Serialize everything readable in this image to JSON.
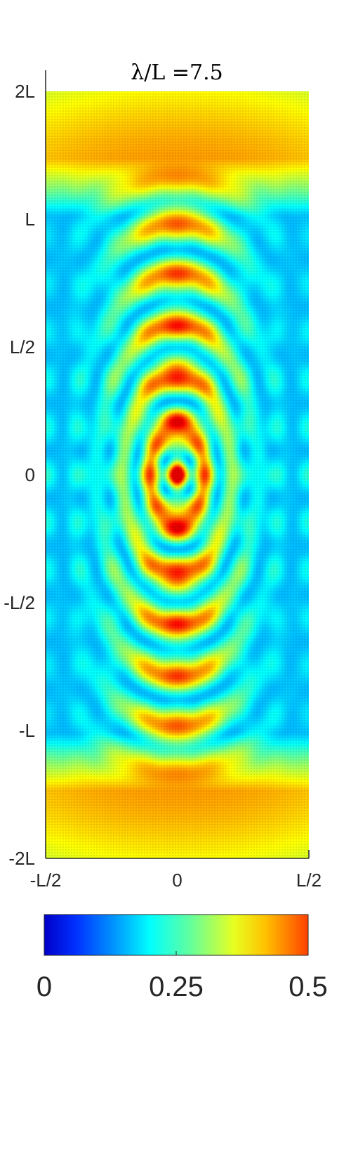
{
  "chart_data": {
    "type": "heatmap",
    "title": "λ/L =7.5",
    "x_ticks": [
      "-L/2",
      "0",
      "L/2"
    ],
    "y_ticks": [
      "2L",
      "L",
      "L/2",
      "0",
      "-L/2",
      "-L",
      "-2L"
    ],
    "xlim": [
      -0.5,
      0.5
    ],
    "ylim": [
      -2,
      2
    ],
    "x_unit": "L",
    "y_unit": "L",
    "colorbar": {
      "ticks": [
        "0",
        "0.25",
        "0.5"
      ],
      "range": [
        0,
        0.5
      ],
      "colormap": "jet"
    },
    "field_description": {
      "value_range": [
        0,
        0.5
      ],
      "central_max_at": [
        0,
        0
      ],
      "central_peak": 0.5,
      "far_field_band_y": [
        -1.6,
        1.6
      ],
      "far_field_value": 0.38
    }
  },
  "colors": {
    "low": "#0000c8",
    "mid": "#00ffff",
    "high": "#ff4000",
    "axis": "#262626"
  }
}
